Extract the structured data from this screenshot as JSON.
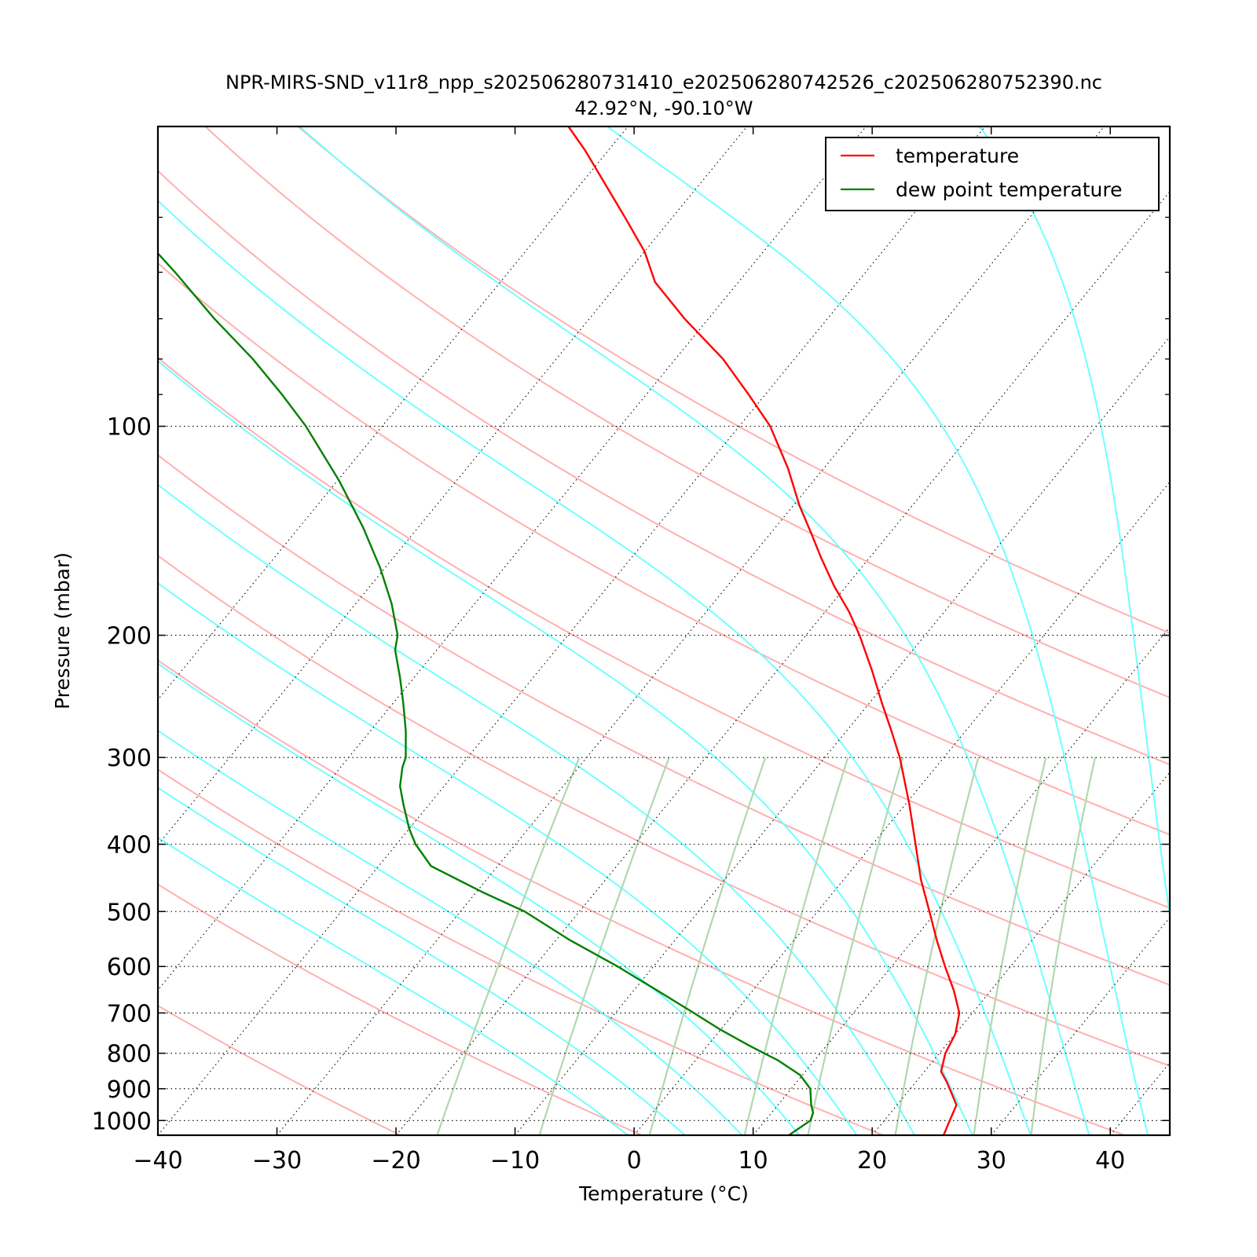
{
  "chart_data": {
    "type": "line",
    "chart_kind": "skew-T log-P diagram",
    "title": "NPR-MIRS-SND_v11r8_npp_s202506280731410_e202506280742526_c202506280752390.nc",
    "subtitle": "42.92°N, -90.10°W",
    "xlabel": "Temperature (°C)",
    "ylabel": "Pressure (mbar)",
    "xlim": [
      -40,
      45
    ],
    "ylim": [
      1050,
      37
    ],
    "y_scale": "log",
    "x_ticks": [
      -40,
      -30,
      -20,
      -10,
      0,
      10,
      20,
      30,
      40
    ],
    "x_tick_labels": [
      "−40",
      "−30",
      "−20",
      "−10",
      "0",
      "10",
      "20",
      "30",
      "40"
    ],
    "y_ticks": [
      100,
      200,
      300,
      400,
      500,
      600,
      700,
      800,
      900,
      1000
    ],
    "y_tick_labels": [
      "100",
      "200",
      "300",
      "400",
      "500",
      "600",
      "700",
      "800",
      "900",
      "1000"
    ],
    "y_minor_ticks": [
      50,
      60,
      70,
      80,
      90
    ],
    "isobar_gridlines": [
      100,
      200,
      300,
      400,
      500,
      600,
      700,
      800,
      900,
      1000
    ],
    "skewed_isotherms_dotted": [
      -70,
      -60,
      -50,
      -40,
      -30,
      -20,
      -10,
      0,
      10,
      20,
      30,
      40
    ],
    "dry_adiabats_theta_K": [
      250,
      270,
      290,
      310,
      330,
      350,
      370,
      390,
      410,
      430,
      450
    ],
    "moist_adiabats_theta_K": [
      270,
      275,
      280,
      285,
      290,
      295,
      300,
      305,
      310,
      315,
      320,
      325,
      330,
      335,
      340,
      345,
      350,
      355
    ],
    "mixing_ratio_lines_gkg": [
      1,
      2,
      4,
      7,
      10,
      16,
      24,
      32
    ],
    "legend": {
      "placement": "top-right",
      "entries": [
        "temperature",
        "dew point temperature"
      ]
    },
    "series": [
      {
        "name": "temperature",
        "color": "#ff0000",
        "points": [
          {
            "p": 1050,
            "t": 26.0
          },
          {
            "p": 1000,
            "t": 25.5
          },
          {
            "p": 950,
            "t": 25.0
          },
          {
            "p": 920,
            "t": 24.0
          },
          {
            "p": 880,
            "t": 22.6
          },
          {
            "p": 850,
            "t": 21.4
          },
          {
            "p": 800,
            "t": 20.5
          },
          {
            "p": 750,
            "t": 20.0
          },
          {
            "p": 700,
            "t": 18.9
          },
          {
            "p": 650,
            "t": 16.9
          },
          {
            "p": 600,
            "t": 14.5
          },
          {
            "p": 550,
            "t": 12.0
          },
          {
            "p": 500,
            "t": 9.4
          },
          {
            "p": 450,
            "t": 6.5
          },
          {
            "p": 400,
            "t": 3.6
          },
          {
            "p": 350,
            "t": 0.3
          },
          {
            "p": 300,
            "t": -3.7
          },
          {
            "p": 275,
            "t": -6.2
          },
          {
            "p": 250,
            "t": -9.0
          },
          {
            "p": 225,
            "t": -12.0
          },
          {
            "p": 200,
            "t": -15.5
          },
          {
            "p": 185,
            "t": -18.0
          },
          {
            "p": 170,
            "t": -21.0
          },
          {
            "p": 155,
            "t": -24.0
          },
          {
            "p": 143,
            "t": -26.5
          },
          {
            "p": 130,
            "t": -29.5
          },
          {
            "p": 115,
            "t": -33.0
          },
          {
            "p": 100,
            "t": -37.4
          },
          {
            "p": 90,
            "t": -41.4
          },
          {
            "p": 80,
            "t": -46.0
          },
          {
            "p": 70,
            "t": -52.0
          },
          {
            "p": 62,
            "t": -57.0
          },
          {
            "p": 56,
            "t": -60.0
          },
          {
            "p": 50,
            "t": -64.0
          },
          {
            "p": 40,
            "t": -72.0
          },
          {
            "p": 37,
            "t": -75.0
          }
        ]
      },
      {
        "name": "dew point temperature",
        "color": "#008000",
        "points": [
          {
            "p": 1050,
            "t": 13.0
          },
          {
            "p": 1000,
            "t": 13.8
          },
          {
            "p": 975,
            "t": 13.5
          },
          {
            "p": 950,
            "t": 12.8
          },
          {
            "p": 900,
            "t": 11.6
          },
          {
            "p": 860,
            "t": 9.8
          },
          {
            "p": 820,
            "t": 7.0
          },
          {
            "p": 780,
            "t": 3.5
          },
          {
            "p": 740,
            "t": 0.0
          },
          {
            "p": 700,
            "t": -3.4
          },
          {
            "p": 650,
            "t": -8.0
          },
          {
            "p": 600,
            "t": -13.0
          },
          {
            "p": 550,
            "t": -18.8
          },
          {
            "p": 500,
            "t": -24.6
          },
          {
            "p": 470,
            "t": -29.3
          },
          {
            "p": 430,
            "t": -35.6
          },
          {
            "p": 400,
            "t": -38.4
          },
          {
            "p": 380,
            "t": -40.0
          },
          {
            "p": 350,
            "t": -42.2
          },
          {
            "p": 330,
            "t": -43.7
          },
          {
            "p": 310,
            "t": -44.8
          },
          {
            "p": 300,
            "t": -45.2
          },
          {
            "p": 275,
            "t": -47.0
          },
          {
            "p": 250,
            "t": -49.2
          },
          {
            "p": 230,
            "t": -51.2
          },
          {
            "p": 210,
            "t": -53.5
          },
          {
            "p": 200,
            "t": -54.3
          },
          {
            "p": 180,
            "t": -57.0
          },
          {
            "p": 160,
            "t": -60.4
          },
          {
            "p": 140,
            "t": -64.6
          },
          {
            "p": 120,
            "t": -69.8
          },
          {
            "p": 100,
            "t": -76.4
          },
          {
            "p": 90,
            "t": -80.6
          },
          {
            "p": 80,
            "t": -85.5
          },
          {
            "p": 70,
            "t": -91.5
          },
          {
            "p": 60,
            "t": -98.0
          },
          {
            "p": 50,
            "t": -106.0
          },
          {
            "p": 45,
            "t": -110.7
          },
          {
            "p": 40,
            "t": -116.0
          },
          {
            "p": 37,
            "t": -120.0
          }
        ]
      }
    ],
    "colors": {
      "temperature": "#ff0000",
      "dew_point": "#008000",
      "dry_adiabat": "#ffb0b0",
      "moist_adiabat": "#70ffff",
      "mixing_ratio": "#b0d8b0",
      "isotherm": "#000000"
    }
  }
}
